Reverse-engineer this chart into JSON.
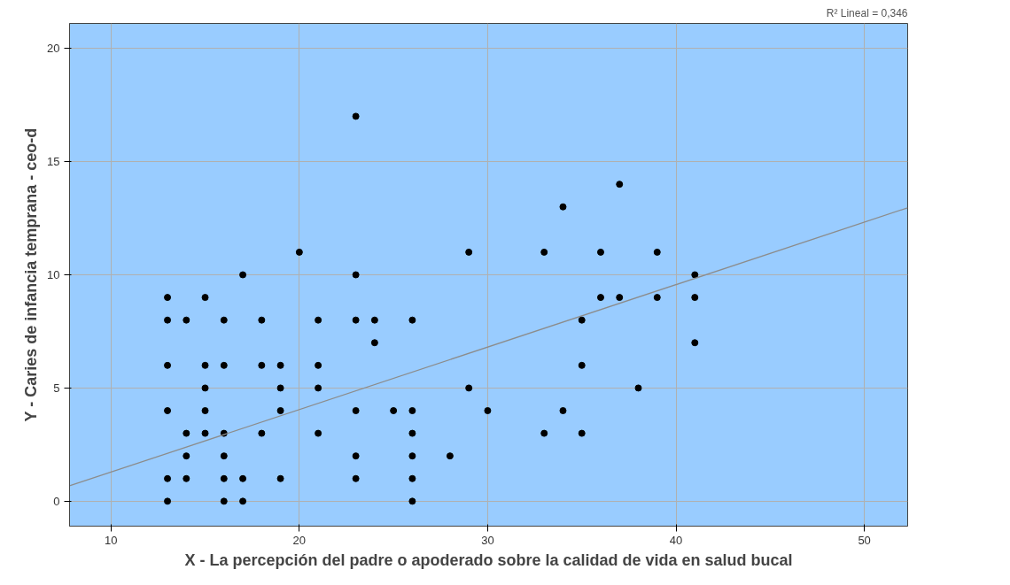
{
  "chart_data": {
    "type": "scatter",
    "xlabel": "X - La percepción del padre o apoderado sobre la calidad de vida en salud bucal",
    "ylabel": "Y - Caries de infancia temprana - ceo-d",
    "xlim": [
      7.8,
      52.3
    ],
    "ylim": [
      -1.1,
      21.1
    ],
    "xticks": [
      10,
      20,
      30,
      40,
      50
    ],
    "yticks": [
      0,
      5,
      10,
      15,
      20
    ],
    "grid": true,
    "marker": "circle",
    "annotations": [
      "R² Lineal = 0,346"
    ],
    "series": [
      {
        "color": "#000000",
        "x": [
          13,
          13,
          13,
          13,
          13,
          13,
          14,
          14,
          14,
          14,
          15,
          15,
          15,
          15,
          15,
          16,
          16,
          16,
          16,
          16,
          16,
          17,
          17,
          17,
          18,
          18,
          18,
          19,
          19,
          19,
          19,
          20,
          21,
          21,
          21,
          21,
          23,
          23,
          23,
          23,
          23,
          23,
          24,
          24,
          25,
          26,
          26,
          26,
          26,
          26,
          26,
          28,
          29,
          29,
          30,
          33,
          33,
          34,
          34,
          35,
          35,
          35,
          36,
          36,
          37,
          37,
          38,
          39,
          39,
          41,
          41,
          41
        ],
        "values": [
          9,
          8,
          6,
          4,
          1,
          0,
          8,
          3,
          2,
          1,
          9,
          6,
          5,
          4,
          3,
          8,
          6,
          3,
          2,
          1,
          0,
          10,
          1,
          0,
          8,
          6,
          3,
          6,
          5,
          4,
          1,
          11,
          8,
          6,
          5,
          3,
          17,
          10,
          8,
          4,
          2,
          1,
          8,
          7,
          4,
          8,
          4,
          3,
          2,
          1,
          0,
          2,
          11,
          5,
          4,
          11,
          3,
          13,
          4,
          8,
          6,
          3,
          11,
          9,
          14,
          9,
          5,
          11,
          9,
          10,
          9,
          7
        ]
      },
      {
        "type": "line",
        "marker": "none",
        "color": "#8c8c8c",
        "x": [
          7.8,
          52.3
        ],
        "values": [
          0.68,
          12.96
        ]
      }
    ]
  }
}
